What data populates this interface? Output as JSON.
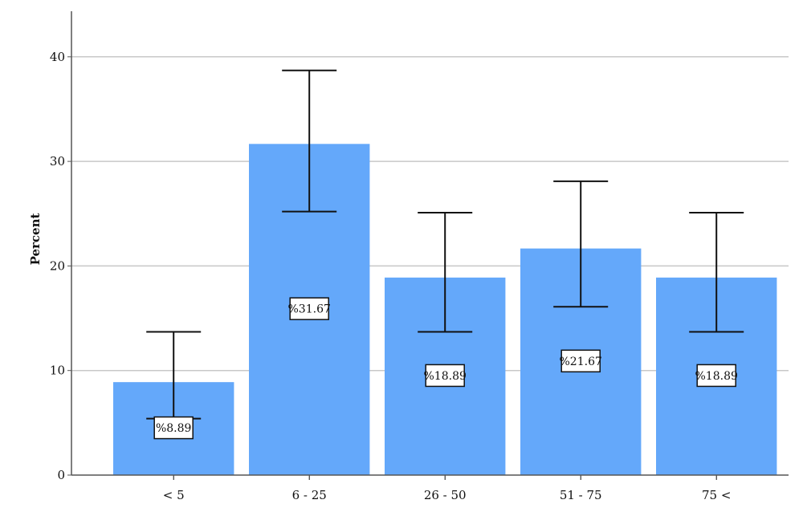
{
  "chart_data": {
    "type": "bar",
    "categories": [
      "< 5",
      "6 - 25",
      "26 - 50",
      "51 - 75",
      "75 <"
    ],
    "values": [
      8.89,
      31.67,
      18.89,
      21.67,
      18.89
    ],
    "error_low": [
      5.4,
      25.2,
      13.7,
      16.1,
      13.7
    ],
    "error_high": [
      13.7,
      38.7,
      25.1,
      28.1,
      25.1
    ],
    "data_labels": [
      "%8.89",
      "%31.67",
      "%18.89",
      "%21.67",
      "%18.89"
    ],
    "title": "",
    "xlabel": "",
    "ylabel": "Percent",
    "ylim": [
      0,
      44
    ],
    "yticks": [
      0,
      10,
      20,
      30,
      40
    ],
    "ytick_labels": [
      "0",
      "10",
      "20",
      "30",
      "40"
    ],
    "grid": true,
    "bar_color": "#64a8fa",
    "grid_color": "#c8c8c8",
    "error_bar_color": "#111111"
  }
}
